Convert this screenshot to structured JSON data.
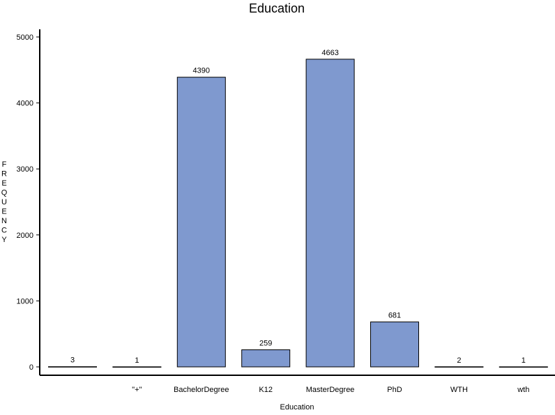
{
  "chart_data": {
    "type": "bar",
    "title": "Education",
    "xlabel": "Education",
    "ylabel": "FREQUENCY",
    "categories": [
      "",
      "\"+\"",
      "BachelorDegree",
      "K12",
      "MasterDegree",
      "PhD",
      "WTH",
      "wth"
    ],
    "values": [
      3,
      1,
      4390,
      259,
      4663,
      681,
      2,
      1
    ],
    "ylim": [
      0,
      5000
    ],
    "yticks": [
      0,
      1000,
      2000,
      3000,
      4000,
      5000
    ],
    "grid": false,
    "legend": "none",
    "bar_color": "#7f99cf",
    "bar_edge_color": "#000000"
  }
}
